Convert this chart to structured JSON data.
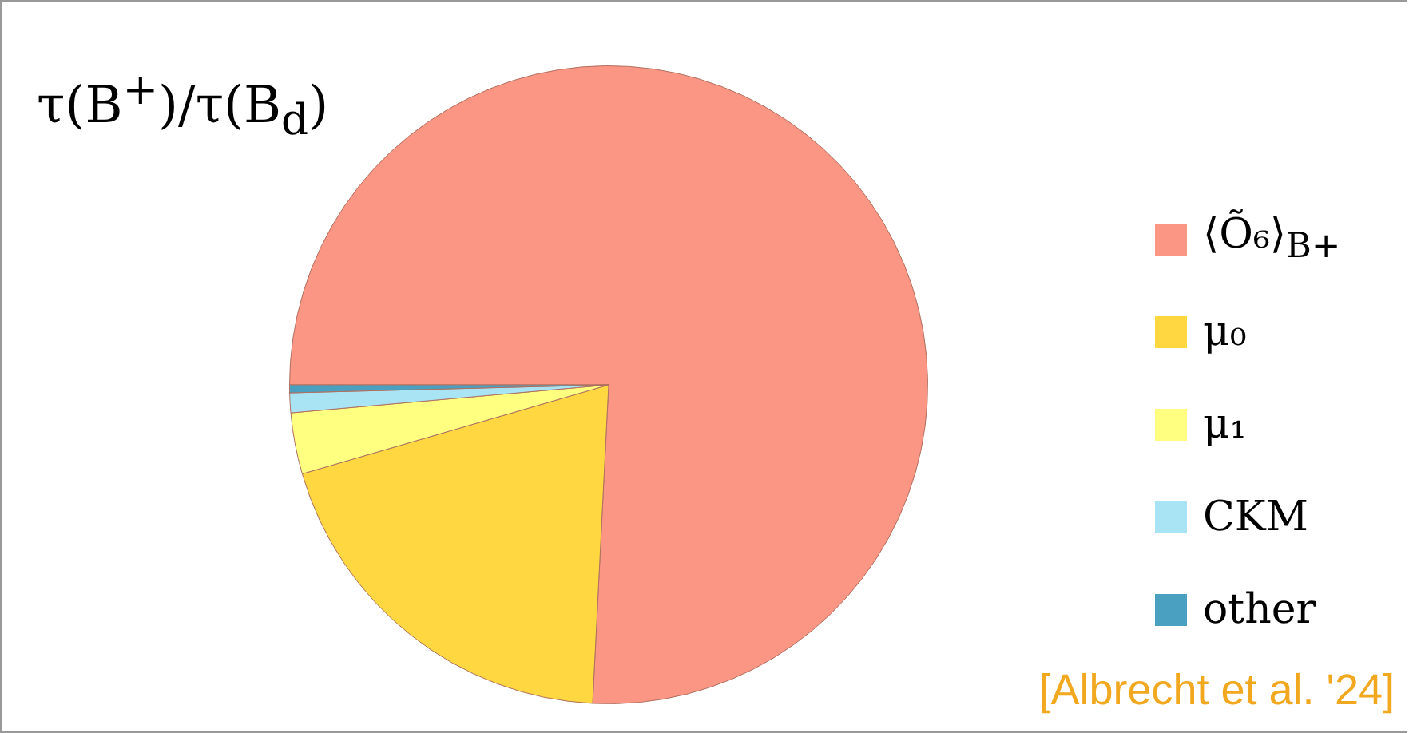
{
  "chart_data": {
    "type": "pie",
    "title": "τ(B$^{+}$)/τ(B$_{d}$)",
    "categories": [
      "⟨Õ₆⟩$_{B+}$",
      "μ₀",
      "μ₁",
      "CKM",
      "other"
    ],
    "values": [
      75.8,
      19.7,
      3.1,
      1.0,
      0.4
    ],
    "colors": [
      "#fb9584",
      "#ffd740",
      "#ffff80",
      "#a8e4f4",
      "#4aa0c0"
    ],
    "legend": "right",
    "annotations": [
      "[Albrecht et al. '24]"
    ]
  }
}
